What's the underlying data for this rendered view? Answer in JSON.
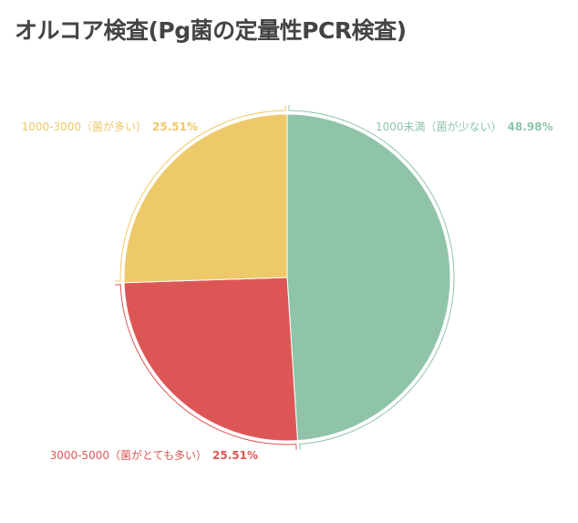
{
  "chart_data": {
    "type": "pie",
    "title": "オルコア検査(Pg菌の定量性PCR検査)",
    "slices": [
      {
        "label": "1000未満（菌が少ない）",
        "value": 48.98,
        "value_label": "48.98%",
        "color": "#8fc4a8"
      },
      {
        "label": "3000-5000（菌がとても多い）",
        "value": 25.51,
        "value_label": "25.51%",
        "color": "#dd5656"
      },
      {
        "label": "1000-3000（菌が多い）",
        "value": 25.51,
        "value_label": "25.51%",
        "color": "#eec96a"
      }
    ],
    "start_angle": "top",
    "direction": "clockwise",
    "legend": "none"
  }
}
